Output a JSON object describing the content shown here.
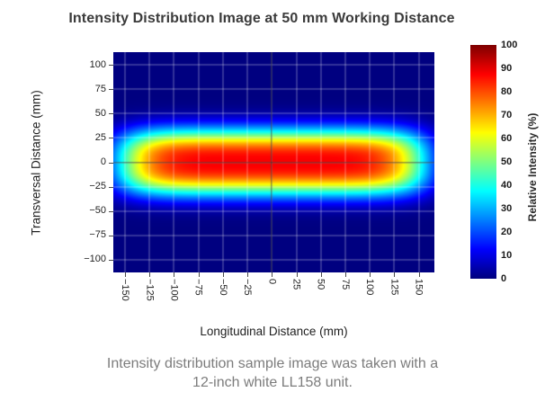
{
  "chart_data": {
    "type": "heatmap",
    "title": "Intensity Distribution Image at 50 mm Working Distance",
    "xlabel": "Longitudinal Distance (mm)",
    "ylabel": "Transversal Distance (mm)",
    "colorbar_label": "Relative Intensity (%)",
    "colormap": "jet",
    "xlim": [
      -162,
      166
    ],
    "ylim": [
      -113,
      113
    ],
    "x_ticks": [
      -150,
      -125,
      -100,
      -75,
      -50,
      -25,
      0,
      25,
      50,
      75,
      100,
      125,
      150
    ],
    "y_ticks": [
      100,
      75,
      50,
      25,
      0,
      -25,
      -50,
      -75,
      -100
    ],
    "colorbar_ticks": [
      100,
      90,
      80,
      70,
      60,
      50,
      40,
      30,
      20,
      10,
      0
    ],
    "colorbar_range": [
      0,
      100
    ],
    "grid": {
      "show": true,
      "spacing_mm": 25,
      "color": "rgba(255,255,255,0.4)"
    },
    "crosshair": {
      "x": 0,
      "y": 0,
      "color": "rgba(20,20,20,0.42)"
    },
    "intensity_model": {
      "description": "Flat-topped elliptical beam profile centered at (0,0); relative intensity as fraction of 100%",
      "formula": "I(x,y) = peak * exp(-((|x|/ax)^px + (|y|/ay)^py))",
      "peak": 0.88,
      "ax": 157,
      "px": 7,
      "ay": 33.5,
      "py": 2.7,
      "center_x": 0,
      "center_y": 0
    }
  },
  "caption": {
    "line1": "Intensity distribution sample image was taken with a",
    "line2": "12-inch white LL158 unit."
  },
  "colors": {
    "title_text": "#3b3b3b",
    "caption_text": "#7c7c7c",
    "axis_text": "#1f1f1f",
    "tick_mark": "#4a4a4a",
    "jet_low": "#000080",
    "jet_high": "#800000",
    "background": "#ffffff"
  }
}
